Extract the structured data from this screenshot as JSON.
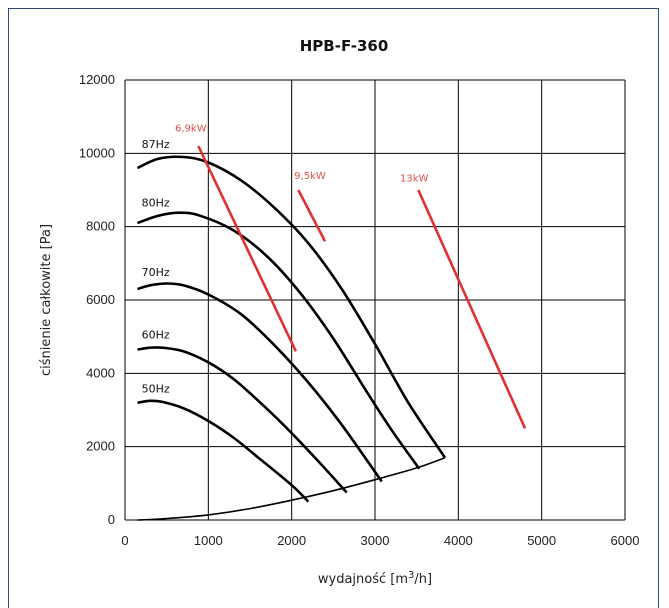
{
  "chart_data": {
    "type": "line",
    "title": "HPB-F-360",
    "xlabel": "wydajność [m3/h]",
    "xlabel_prefix": "wydajność [m",
    "xlabel_sup": "3",
    "xlabel_suffix": "/h]",
    "ylabel": "ciśnienie całkowite [Pa]",
    "xlim": [
      0,
      6000
    ],
    "ylim": [
      0,
      12000
    ],
    "x_ticks": [
      0,
      1000,
      2000,
      3000,
      4000,
      5000,
      6000
    ],
    "y_ticks": [
      0,
      2000,
      4000,
      6000,
      8000,
      10000,
      12000
    ],
    "grid": true,
    "series": [
      {
        "name": "87Hz",
        "color": "#000000",
        "x": [
          150,
          400,
          700,
          1000,
          1400,
          1800,
          2200,
          2600,
          3000,
          3400,
          3840
        ],
        "y": [
          9600,
          9850,
          9900,
          9750,
          9250,
          8500,
          7550,
          6300,
          4800,
          3200,
          1700
        ]
      },
      {
        "name": "80Hz",
        "color": "#000000",
        "x": [
          150,
          400,
          650,
          900,
          1300,
          1700,
          2100,
          2500,
          2900,
          3200,
          3530
        ],
        "y": [
          8100,
          8300,
          8380,
          8300,
          7900,
          7200,
          6200,
          4950,
          3500,
          2450,
          1400
        ]
      },
      {
        "name": "70Hz",
        "color": "#000000",
        "x": [
          150,
          300,
          500,
          700,
          1000,
          1400,
          1800,
          2200,
          2600,
          3080
        ],
        "y": [
          6300,
          6400,
          6450,
          6400,
          6150,
          5600,
          4750,
          3750,
          2600,
          1050
        ]
      },
      {
        "name": "60Hz",
        "color": "#000000",
        "x": [
          150,
          300,
          450,
          700,
          1000,
          1300,
          1600,
          1900,
          2300,
          2660
        ],
        "y": [
          4650,
          4700,
          4700,
          4600,
          4300,
          3850,
          3250,
          2600,
          1650,
          750
        ]
      },
      {
        "name": "50Hz",
        "color": "#000000",
        "x": [
          150,
          300,
          450,
          700,
          1000,
          1300,
          1600,
          2000,
          2200
        ],
        "y": [
          3200,
          3250,
          3220,
          3050,
          2700,
          2250,
          1700,
          950,
          500
        ]
      },
      {
        "name": "",
        "color": "#000000",
        "x": [
          150,
          500,
          1000,
          1500,
          2000,
          2500,
          3000,
          3500,
          3840
        ],
        "y": [
          0,
          40,
          140,
          310,
          540,
          800,
          1100,
          1420,
          1700
        ]
      }
    ],
    "power_lines": [
      {
        "label": "6,9kW",
        "color": "#e03030",
        "x": [
          880,
          2050
        ],
        "y": [
          10200,
          4600
        ]
      },
      {
        "label": "9,5kW",
        "color": "#e03030",
        "x": [
          2080,
          2400
        ],
        "y": [
          9000,
          7600
        ]
      },
      {
        "label": "13kW",
        "color": "#e03030",
        "x": [
          3520,
          4800
        ],
        "y": [
          9000,
          2500
        ]
      }
    ],
    "series_labels": [
      {
        "text": "87Hz",
        "x": 200,
        "y": 10150
      },
      {
        "text": "80Hz",
        "x": 200,
        "y": 8550
      },
      {
        "text": "70Hz",
        "x": 200,
        "y": 6650
      },
      {
        "text": "60Hz",
        "x": 200,
        "y": 4950
      },
      {
        "text": "50Hz",
        "x": 200,
        "y": 3480
      }
    ],
    "power_labels": [
      {
        "text": "6,9kW",
        "x": 600,
        "y": 10600
      },
      {
        "text": "9,5kW",
        "x": 2030,
        "y": 9300
      },
      {
        "text": "13kW",
        "x": 3300,
        "y": 9230
      }
    ]
  }
}
